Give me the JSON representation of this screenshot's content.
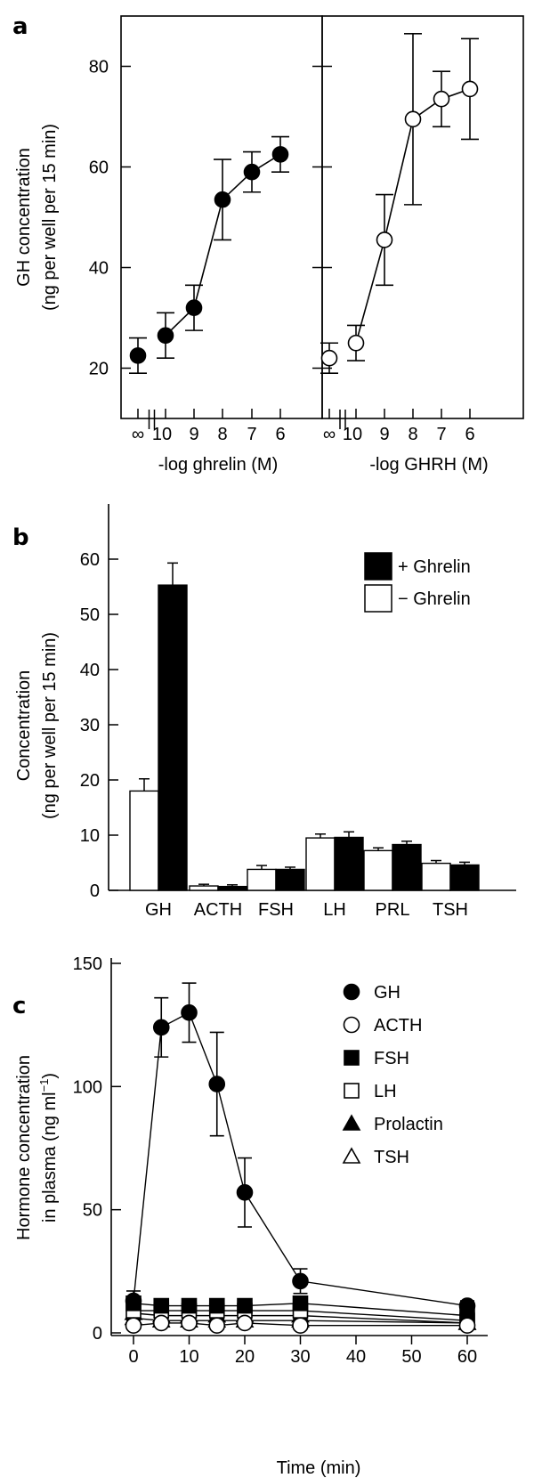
{
  "chart_data": [
    {
      "panel": "a",
      "type": "line",
      "subpanels": [
        {
          "xlabel": "-log ghrelin (M)",
          "x_ticks": [
            "∞",
            "10",
            "9",
            "8",
            "7",
            "6"
          ],
          "x": [
            "∞",
            "10",
            "9",
            "8",
            "7",
            "6"
          ],
          "y": [
            22.5,
            26.5,
            32,
            53.5,
            59,
            62.5
          ],
          "y_err": [
            3.5,
            4.5,
            4.5,
            8,
            4,
            3.5
          ],
          "marker": "filled-circle"
        },
        {
          "xlabel": "-log GHRH (M)",
          "x_ticks": [
            "∞",
            "10",
            "9",
            "8",
            "7",
            "6"
          ],
          "x": [
            "∞",
            "10",
            "9",
            "8",
            "7",
            "6"
          ],
          "y": [
            22,
            25,
            45.5,
            69.5,
            73.5,
            75.5
          ],
          "y_err": [
            3,
            3.5,
            9,
            17,
            5.5,
            10
          ],
          "marker": "open-circle"
        }
      ],
      "ylabel_line1": "GH concentration",
      "ylabel_line2": "(ng per well per 15 min)",
      "ylim": [
        10,
        90
      ],
      "y_ticks": [
        "20",
        "40",
        "60",
        "80"
      ]
    },
    {
      "panel": "b",
      "type": "bar",
      "categories": [
        "GH",
        "ACTH",
        "FSH",
        "LH",
        "PRL",
        "TSH"
      ],
      "series": [
        {
          "name": "− Ghrelin",
          "values": [
            18,
            0.8,
            3.8,
            9.5,
            7.2,
            4.9
          ],
          "err": [
            2.2,
            0.3,
            0.7,
            0.7,
            0.5,
            0.5
          ],
          "color": "#ffffff"
        },
        {
          "name": "+ Ghrelin",
          "values": [
            55.3,
            0.7,
            3.8,
            9.6,
            8.3,
            4.6
          ],
          "err": [
            4,
            0.3,
            0.4,
            1,
            0.6,
            0.5
          ],
          "color": "#000000"
        }
      ],
      "legend_order": [
        "+ Ghrelin",
        "− Ghrelin"
      ],
      "ylabel_line1": "Concentration",
      "ylabel_line2": "(ng per well per 15 min)",
      "ylim": [
        0,
        70
      ],
      "y_ticks": [
        "0",
        "10",
        "20",
        "30",
        "40",
        "50",
        "60"
      ],
      "legend_position": "top-right"
    },
    {
      "panel": "c",
      "type": "line",
      "x_ticks": [
        "0",
        "10",
        "20",
        "30",
        "40",
        "50",
        "60"
      ],
      "xlim": [
        0,
        60
      ],
      "y_ticks": [
        "0",
        "50",
        "100",
        "150"
      ],
      "ylim": [
        0,
        155
      ],
      "xlabel": "Time (min)",
      "ylabel_line1": "Hormone concentration",
      "ylabel_line2": "in plasma (ng ml",
      "ylabel_sup": "−1",
      "ylabel_end": ")",
      "series": [
        {
          "name": "GH",
          "marker": "filled-circle",
          "x": [
            0,
            5,
            10,
            15,
            20,
            30,
            60
          ],
          "y": [
            13,
            124,
            130,
            101,
            57,
            21,
            11
          ],
          "err": [
            4,
            12,
            12,
            21,
            14,
            5,
            2
          ]
        },
        {
          "name": "ACTH",
          "marker": "open-circle",
          "x": [
            0,
            5,
            10,
            15,
            20,
            30,
            60
          ],
          "y": [
            3,
            4,
            4,
            3,
            4,
            3,
            3
          ],
          "err": [
            0,
            0,
            0,
            0,
            0,
            0,
            0
          ]
        },
        {
          "name": "FSH",
          "marker": "filled-square",
          "x": [
            0,
            5,
            10,
            15,
            20,
            30,
            60
          ],
          "y": [
            12,
            11,
            11,
            11,
            11,
            12,
            7
          ],
          "err": [
            2,
            1,
            1,
            1,
            1,
            2,
            1
          ]
        },
        {
          "name": "LH",
          "marker": "open-square",
          "x": [
            0,
            5,
            10,
            15,
            20,
            30,
            60
          ],
          "y": [
            9,
            9,
            9,
            9,
            9,
            9,
            5
          ],
          "err": [
            1,
            1,
            1,
            1,
            1,
            1,
            1
          ]
        },
        {
          "name": "Prolactin",
          "marker": "filled-triangle",
          "x": [
            0,
            5,
            10,
            15,
            20,
            30,
            60
          ],
          "y": [
            8,
            7,
            7,
            7,
            7,
            7,
            4
          ],
          "err": [
            1,
            1,
            1,
            1,
            1,
            1,
            1
          ]
        },
        {
          "name": "TSH",
          "marker": "open-triangle",
          "x": [
            0,
            5,
            10,
            15,
            20,
            30,
            60
          ],
          "y": [
            6,
            5,
            5,
            5,
            5,
            5,
            4
          ],
          "err": [
            1,
            1,
            1,
            1,
            1,
            1,
            1
          ]
        }
      ],
      "legend_position": "top-right"
    }
  ],
  "panel_labels": {
    "a": "a",
    "b": "b",
    "c": "c"
  }
}
